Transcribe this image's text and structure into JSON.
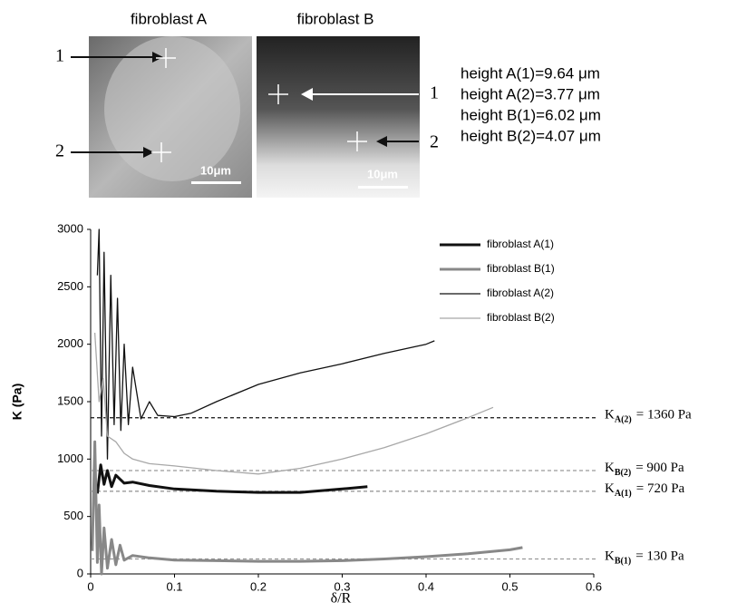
{
  "figure": {
    "panel_titles": [
      "fibroblast A",
      "fibroblast B"
    ],
    "scale_bars": [
      "10μm",
      "10μm"
    ],
    "point_labels_left": [
      "1",
      "2"
    ],
    "point_labels_right": [
      "1",
      "2"
    ],
    "heights": [
      "height A(1)=9.64 μm",
      "height A(2)=3.77 μm",
      "height B(1)=6.02 μm",
      "height B(2)=4.07 μm"
    ]
  },
  "chart_data": {
    "type": "line",
    "x_label": "δ/R",
    "y_label": "K (Pa)",
    "xlim": [
      0,
      0.6
    ],
    "xticks": [
      0,
      0.1,
      0.2,
      0.3,
      0.4,
      0.5,
      0.6
    ],
    "ylim": [
      0,
      3000
    ],
    "yticks": [
      0,
      500,
      1000,
      1500,
      2000,
      2500,
      3000
    ],
    "legend": "top-right",
    "series": [
      {
        "name": "fibroblast A(1)",
        "color": "#111111",
        "width": 3,
        "x": [
          0.008,
          0.012,
          0.016,
          0.02,
          0.025,
          0.03,
          0.04,
          0.05,
          0.07,
          0.1,
          0.15,
          0.2,
          0.25,
          0.3,
          0.33
        ],
        "values": [
          700,
          950,
          780,
          900,
          760,
          860,
          790,
          800,
          770,
          740,
          720,
          710,
          710,
          740,
          760
        ]
      },
      {
        "name": "fibroblast B(1)",
        "color": "#888888",
        "width": 3,
        "x": [
          0.002,
          0.005,
          0.008,
          0.01,
          0.013,
          0.016,
          0.02,
          0.025,
          0.03,
          0.035,
          0.04,
          0.05,
          0.07,
          0.1,
          0.15,
          0.2,
          0.25,
          0.3,
          0.35,
          0.4,
          0.45,
          0.5,
          0.515
        ],
        "values": [
          200,
          1150,
          100,
          600,
          0,
          400,
          50,
          300,
          80,
          250,
          120,
          160,
          140,
          120,
          115,
          110,
          110,
          115,
          130,
          150,
          175,
          210,
          230
        ]
      },
      {
        "name": "fibroblast A(2)",
        "color": "#111111",
        "width": 1.3,
        "x": [
          0.008,
          0.01,
          0.013,
          0.016,
          0.02,
          0.024,
          0.028,
          0.032,
          0.036,
          0.04,
          0.045,
          0.05,
          0.06,
          0.07,
          0.08,
          0.1,
          0.12,
          0.15,
          0.2,
          0.25,
          0.3,
          0.35,
          0.4,
          0.41
        ],
        "values": [
          2600,
          3000,
          1200,
          2800,
          1000,
          2600,
          1300,
          2400,
          1250,
          2000,
          1300,
          1800,
          1350,
          1500,
          1380,
          1370,
          1400,
          1500,
          1650,
          1750,
          1830,
          1920,
          2000,
          2030
        ]
      },
      {
        "name": "fibroblast B(2)",
        "color": "#a8a8a8",
        "width": 1.3,
        "x": [
          0.005,
          0.01,
          0.015,
          0.02,
          0.03,
          0.04,
          0.05,
          0.07,
          0.1,
          0.15,
          0.2,
          0.25,
          0.3,
          0.35,
          0.4,
          0.45,
          0.48
        ],
        "values": [
          2100,
          1500,
          1700,
          1200,
          1150,
          1050,
          1000,
          960,
          940,
          900,
          870,
          920,
          1000,
          1100,
          1220,
          1360,
          1450
        ]
      }
    ],
    "reference_lines": [
      {
        "value": 1360,
        "color": "#111111",
        "symbol": "K",
        "sub": "A(2)",
        "text": "= 1360 Pa"
      },
      {
        "value": 900,
        "color": "#999999",
        "symbol": "K",
        "sub": "B(2)",
        "text": "= 900 Pa"
      },
      {
        "value": 720,
        "color": "#999999",
        "symbol": "K",
        "sub": "A(1)",
        "text": "= 720 Pa"
      },
      {
        "value": 130,
        "color": "#999999",
        "symbol": "K",
        "sub": "B(1)",
        "text": "= 130 Pa"
      }
    ]
  }
}
